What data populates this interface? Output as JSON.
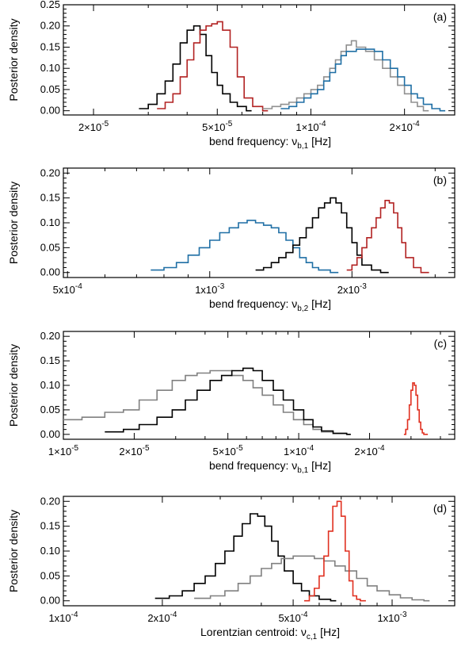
{
  "chart_data": [
    {
      "type": "line",
      "panel_label": "(a)",
      "ylabel": "Posterior density",
      "xlabel": {
        "prefix": "bend frequency: ν",
        "sub": "b,1",
        "suffix": " [Hz]"
      },
      "xscale": "log",
      "xlim": [
        1.6e-05,
        0.00029
      ],
      "ylim": [
        -0.01,
        0.25
      ],
      "xticks": [
        {
          "value": 2e-05,
          "mant": "2×10",
          "exp": "-5"
        },
        {
          "value": 5e-05,
          "mant": "5×10",
          "exp": "-5"
        },
        {
          "value": 0.0001,
          "mant": "1×10",
          "exp": "-4"
        },
        {
          "value": 0.0002,
          "mant": "2×10",
          "exp": "-4"
        }
      ],
      "yticks": [
        "0.00",
        "0.05",
        "0.10",
        "0.15",
        "0.20",
        "0.25"
      ],
      "ytick_values": [
        0,
        0.05,
        0.1,
        0.15,
        0.2,
        0.25
      ],
      "series": [
        {
          "color": "#000000",
          "x": [
            2.8e-05,
            3e-05,
            3.2e-05,
            3.4e-05,
            3.6e-05,
            3.8e-05,
            4e-05,
            4.2e-05,
            4.4e-05,
            4.6e-05,
            4.8e-05,
            5e-05,
            5.2e-05,
            5.5e-05,
            5.8e-05,
            6.2e-05
          ],
          "y": [
            0.005,
            0.015,
            0.04,
            0.07,
            0.11,
            0.16,
            0.19,
            0.2,
            0.18,
            0.13,
            0.09,
            0.06,
            0.04,
            0.02,
            0.01,
            0.0
          ]
        },
        {
          "color": "#b22222",
          "x": [
            3.2e-05,
            3.4e-05,
            3.6e-05,
            3.8e-05,
            4e-05,
            4.2e-05,
            4.4e-05,
            4.6e-05,
            4.8e-05,
            5e-05,
            5.2e-05,
            5.5e-05,
            5.8e-05,
            6.1e-05,
            6.5e-05,
            7e-05
          ],
          "y": [
            0.005,
            0.02,
            0.04,
            0.08,
            0.12,
            0.16,
            0.19,
            0.2,
            0.205,
            0.21,
            0.19,
            0.15,
            0.08,
            0.03,
            0.01,
            0.0
          ]
        },
        {
          "color": "#909090",
          "x": [
            7e-05,
            7.5e-05,
            8e-05,
            8.5e-05,
            9e-05,
            9.5e-05,
            0.0001,
            0.000105,
            0.00011,
            0.000115,
            0.00012,
            0.000125,
            0.00013,
            0.000135,
            0.00014,
            0.00015,
            0.00016,
            0.00017,
            0.00018,
            0.00019,
            0.0002,
            0.00021,
            0.00022,
            0.00023
          ],
          "y": [
            0.005,
            0.01,
            0.015,
            0.02,
            0.03,
            0.04,
            0.05,
            0.06,
            0.08,
            0.1,
            0.12,
            0.14,
            0.155,
            0.165,
            0.15,
            0.14,
            0.12,
            0.1,
            0.08,
            0.06,
            0.04,
            0.02,
            0.01,
            0.0
          ]
        },
        {
          "color": "#1f6fa5",
          "x": [
            8e-05,
            8.5e-05,
            9e-05,
            9.5e-05,
            0.0001,
            0.000105,
            0.00011,
            0.000115,
            0.00012,
            0.000125,
            0.00013,
            0.00014,
            0.00015,
            0.00016,
            0.00017,
            0.00018,
            0.00019,
            0.0002,
            0.00021,
            0.00022,
            0.00023,
            0.000245,
            0.00026
          ],
          "y": [
            0.005,
            0.01,
            0.02,
            0.03,
            0.04,
            0.05,
            0.07,
            0.09,
            0.11,
            0.13,
            0.14,
            0.145,
            0.145,
            0.14,
            0.12,
            0.1,
            0.08,
            0.06,
            0.04,
            0.03,
            0.015,
            0.005,
            0.0
          ]
        }
      ]
    },
    {
      "type": "line",
      "panel_label": "(b)",
      "ylabel": "Posterior density",
      "xlabel": {
        "prefix": "bend frequency: ν",
        "sub": "b,2",
        "suffix": " [Hz]"
      },
      "xscale": "log",
      "xlim": [
        0.00049,
        0.0033
      ],
      "ylim": [
        -0.01,
        0.21
      ],
      "xticks": [
        {
          "value": 0.0005,
          "mant": "5x10",
          "exp": "-4"
        },
        {
          "value": 0.001,
          "mant": "1x10",
          "exp": "-3"
        },
        {
          "value": 0.002,
          "mant": "2x10",
          "exp": "-3"
        }
      ],
      "yticks": [
        "0.00",
        "0.05",
        "0.10",
        "0.15",
        "0.20"
      ],
      "ytick_values": [
        0,
        0.05,
        0.1,
        0.15,
        0.2
      ],
      "series": [
        {
          "color": "#1f6fa5",
          "x": [
            0.00075,
            0.0008,
            0.00085,
            0.0009,
            0.00095,
            0.001,
            0.00105,
            0.0011,
            0.00115,
            0.0012,
            0.00125,
            0.0013,
            0.00135,
            0.0014,
            0.00145,
            0.0015,
            0.00155,
            0.0016,
            0.00165,
            0.0017,
            0.0018
          ],
          "y": [
            0.005,
            0.01,
            0.02,
            0.035,
            0.05,
            0.065,
            0.08,
            0.09,
            0.1,
            0.105,
            0.1,
            0.095,
            0.09,
            0.08,
            0.065,
            0.05,
            0.03,
            0.02,
            0.01,
            0.005,
            0.0
          ]
        },
        {
          "color": "#000000",
          "x": [
            0.00125,
            0.0013,
            0.00135,
            0.0014,
            0.00145,
            0.0015,
            0.00155,
            0.0016,
            0.00165,
            0.0017,
            0.00175,
            0.0018,
            0.00185,
            0.0019,
            0.00195,
            0.002,
            0.00205,
            0.0021,
            0.0022,
            0.0023
          ],
          "y": [
            0.005,
            0.01,
            0.02,
            0.03,
            0.04,
            0.055,
            0.07,
            0.09,
            0.11,
            0.13,
            0.14,
            0.15,
            0.14,
            0.12,
            0.09,
            0.06,
            0.035,
            0.015,
            0.005,
            0.0
          ]
        },
        {
          "color": "#b22222",
          "x": [
            0.00195,
            0.002,
            0.00205,
            0.0021,
            0.00215,
            0.0022,
            0.00225,
            0.0023,
            0.00235,
            0.0024,
            0.00245,
            0.0025,
            0.00255,
            0.0026,
            0.0027,
            0.0028
          ],
          "y": [
            0.005,
            0.015,
            0.03,
            0.05,
            0.07,
            0.09,
            0.11,
            0.13,
            0.145,
            0.14,
            0.12,
            0.09,
            0.06,
            0.03,
            0.01,
            0.0
          ]
        }
      ]
    },
    {
      "type": "line",
      "panel_label": "(c)",
      "ylabel": "Posterior density",
      "xlabel": {
        "prefix": "bend frequency: ν",
        "sub": "b,1",
        "suffix": " [Hz]"
      },
      "xscale": "log",
      "xlim": [
        1e-05,
        0.00046
      ],
      "ylim": [
        -0.01,
        0.21
      ],
      "xticks": [
        {
          "value": 1e-05,
          "mant": "1×10",
          "exp": "-5"
        },
        {
          "value": 2e-05,
          "mant": "2×10",
          "exp": "-5"
        },
        {
          "value": 5e-05,
          "mant": "5×10",
          "exp": "-5"
        },
        {
          "value": 0.0001,
          "mant": "1×10",
          "exp": "-4"
        },
        {
          "value": 0.0002,
          "mant": "2×10",
          "exp": "-4"
        }
      ],
      "yticks": [
        "0.00",
        "0.05",
        "0.10",
        "0.15",
        "0.20"
      ],
      "ytick_values": [
        0,
        0.05,
        0.1,
        0.15,
        0.2
      ],
      "series": [
        {
          "color": "#808080",
          "x": [
            1e-05,
            1.2e-05,
            1.5e-05,
            1.8e-05,
            2.1e-05,
            2.5e-05,
            2.9e-05,
            3.3e-05,
            3.7e-05,
            4.2e-05,
            4.7e-05,
            5.2e-05,
            5.8e-05,
            6.4e-05,
            7e-05,
            7.8e-05,
            8.6e-05,
            9.5e-05,
            0.000105,
            0.000115,
            0.000125,
            0.00014,
            0.00016
          ],
          "y": [
            0.03,
            0.035,
            0.045,
            0.05,
            0.07,
            0.09,
            0.11,
            0.12,
            0.125,
            0.13,
            0.13,
            0.12,
            0.11,
            0.095,
            0.08,
            0.06,
            0.045,
            0.03,
            0.02,
            0.01,
            0.005,
            0.002,
            0.0
          ]
        },
        {
          "color": "#000000",
          "x": [
            1.5e-05,
            1.8e-05,
            2.1e-05,
            2.5e-05,
            2.9e-05,
            3.3e-05,
            3.7e-05,
            4.2e-05,
            4.7e-05,
            5.2e-05,
            5.8e-05,
            6.4e-05,
            7e-05,
            7.8e-05,
            8.6e-05,
            9.5e-05,
            0.000105,
            0.000115,
            0.000125,
            0.00014,
            0.00016
          ],
          "y": [
            0.005,
            0.01,
            0.02,
            0.035,
            0.05,
            0.07,
            0.09,
            0.11,
            0.12,
            0.13,
            0.135,
            0.13,
            0.11,
            0.09,
            0.07,
            0.05,
            0.03,
            0.015,
            0.007,
            0.002,
            0.0
          ]
        },
        {
          "color": "#e03020",
          "x": [
            0.00028,
            0.000285,
            0.00029,
            0.000295,
            0.0003,
            0.000305,
            0.00031,
            0.000315,
            0.00032,
            0.000325,
            0.00033,
            0.000335,
            0.00034
          ],
          "y": [
            0.0,
            0.01,
            0.03,
            0.06,
            0.09,
            0.105,
            0.1,
            0.08,
            0.05,
            0.025,
            0.01,
            0.003,
            0.0
          ]
        }
      ]
    },
    {
      "type": "line",
      "panel_label": "(d)",
      "ylabel": "Posterior density",
      "xlabel": {
        "prefix": "Lorentzian centroid: ν",
        "sub": "c,1",
        "suffix": " [Hz]"
      },
      "xscale": "log",
      "xlim": [
        0.0001,
        0.00155
      ],
      "ylim": [
        -0.01,
        0.21
      ],
      "xticks": [
        {
          "value": 0.0001,
          "mant": "1x10",
          "exp": "-4"
        },
        {
          "value": 0.0002,
          "mant": "2x10",
          "exp": "-4"
        },
        {
          "value": 0.0005,
          "mant": "5x10",
          "exp": "-4"
        },
        {
          "value": 0.001,
          "mant": "1x10",
          "exp": "-3"
        }
      ],
      "yticks": [
        "0.00",
        "0.05",
        "0.10",
        "0.15",
        "0.20"
      ],
      "ytick_values": [
        0,
        0.05,
        0.1,
        0.15,
        0.2
      ],
      "series": [
        {
          "color": "#000000",
          "x": [
            0.00019,
            0.00021,
            0.00023,
            0.00025,
            0.00027,
            0.00029,
            0.00031,
            0.00033,
            0.00035,
            0.00037,
            0.00039,
            0.00041,
            0.00043,
            0.00045,
            0.00047,
            0.0005,
            0.00053,
            0.00056,
            0.0006,
            0.00065
          ],
          "y": [
            0.005,
            0.01,
            0.02,
            0.035,
            0.05,
            0.075,
            0.1,
            0.13,
            0.155,
            0.175,
            0.17,
            0.15,
            0.12,
            0.09,
            0.06,
            0.035,
            0.02,
            0.01,
            0.003,
            0.0
          ]
        },
        {
          "color": "#808080",
          "x": [
            0.00025,
            0.00028,
            0.00031,
            0.00034,
            0.00037,
            0.0004,
            0.00043,
            0.00046,
            0.0005,
            0.00054,
            0.00058,
            0.00062,
            0.00067,
            0.00072,
            0.00078,
            0.00084,
            0.0009,
            0.00098,
            0.00106,
            0.00115,
            0.00125
          ],
          "y": [
            0.005,
            0.01,
            0.02,
            0.035,
            0.05,
            0.065,
            0.075,
            0.085,
            0.09,
            0.09,
            0.085,
            0.08,
            0.07,
            0.06,
            0.045,
            0.03,
            0.02,
            0.012,
            0.006,
            0.002,
            0.0
          ]
        },
        {
          "color": "#e03020",
          "x": [
            0.00054,
            0.00056,
            0.00058,
            0.0006,
            0.00062,
            0.00064,
            0.00066,
            0.00068,
            0.0007,
            0.00072,
            0.00074,
            0.00076,
            0.00078,
            0.0008
          ],
          "y": [
            0.0,
            0.01,
            0.025,
            0.05,
            0.09,
            0.14,
            0.19,
            0.2,
            0.17,
            0.1,
            0.04,
            0.01,
            0.003,
            0.0
          ]
        }
      ]
    }
  ]
}
